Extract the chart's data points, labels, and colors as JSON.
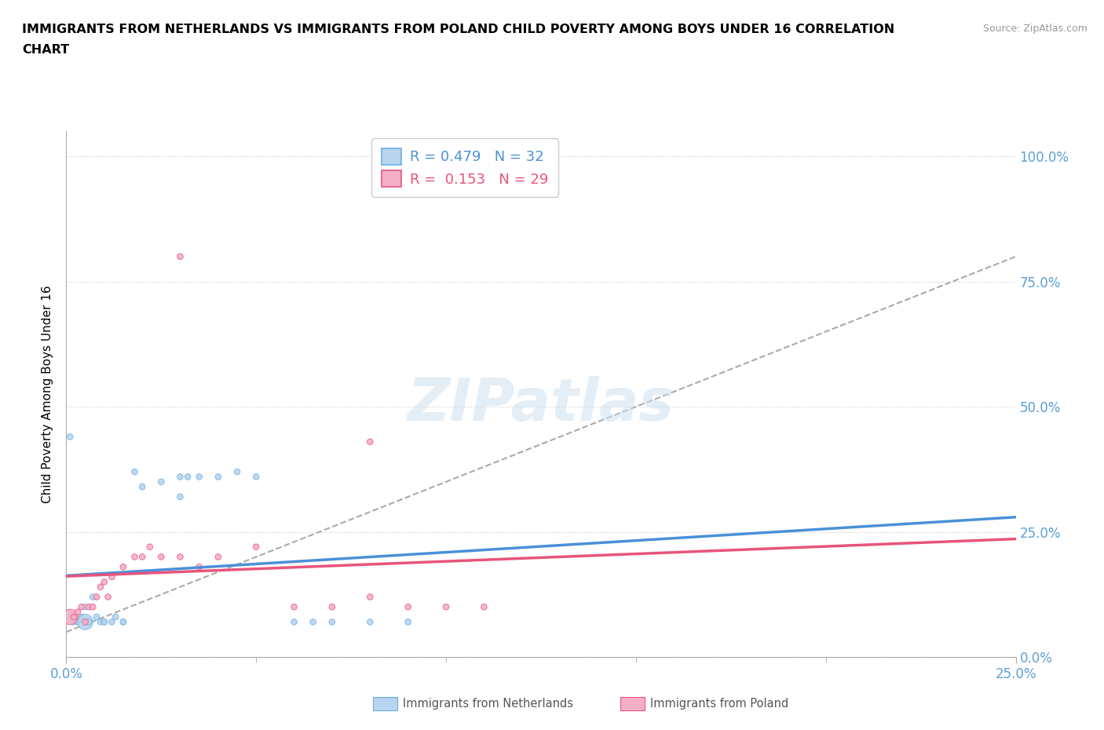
{
  "title_line1": "IMMIGRANTS FROM NETHERLANDS VS IMMIGRANTS FROM POLAND CHILD POVERTY AMONG BOYS UNDER 16 CORRELATION",
  "title_line2": "CHART",
  "ylabel": "Child Poverty Among Boys Under 16",
  "source": "Source: ZipAtlas.com",
  "xlim": [
    0.0,
    0.25
  ],
  "ylim": [
    0.0,
    1.05
  ],
  "ytick_positions": [
    0.0,
    0.25,
    0.5,
    0.75,
    1.0
  ],
  "ytick_labels": [
    "0.0%",
    "25.0%",
    "50.0%",
    "75.0%",
    "100.0%"
  ],
  "xtick_positions": [
    0.0,
    0.25
  ],
  "xtick_labels": [
    "0.0%",
    "25.0%"
  ],
  "netherlands_fill": "#b8d4ee",
  "netherlands_edge": "#6aaee8",
  "poland_fill": "#f5b0c8",
  "poland_edge": "#e8547a",
  "nl_line_color": "#4a90d9",
  "pl_line_color": "#e8547a",
  "gray_dash_color": "#aaaaaa",
  "R_netherlands": 0.479,
  "N_netherlands": 32,
  "R_poland": 0.153,
  "N_poland": 29,
  "watermark": "ZIPatlas",
  "nl_x": [
    0.001,
    0.002,
    0.003,
    0.004,
    0.005,
    0.005,
    0.006,
    0.007,
    0.008,
    0.009,
    0.01,
    0.01,
    0.012,
    0.013,
    0.015,
    0.015,
    0.001,
    0.018,
    0.02,
    0.025,
    0.03,
    0.03,
    0.032,
    0.035,
    0.04,
    0.045,
    0.05,
    0.06,
    0.065,
    0.07,
    0.08,
    0.09
  ],
  "nl_y": [
    0.08,
    0.07,
    0.07,
    0.08,
    0.1,
    0.07,
    0.07,
    0.12,
    0.08,
    0.07,
    0.07,
    0.07,
    0.07,
    0.08,
    0.07,
    0.07,
    0.44,
    0.37,
    0.34,
    0.35,
    0.36,
    0.32,
    0.36,
    0.36,
    0.36,
    0.37,
    0.36,
    0.07,
    0.07,
    0.07,
    0.07,
    0.07
  ],
  "nl_s": [
    30,
    30,
    30,
    30,
    30,
    30,
    30,
    30,
    30,
    30,
    30,
    30,
    30,
    30,
    30,
    30,
    30,
    30,
    30,
    30,
    30,
    30,
    30,
    30,
    30,
    30,
    30,
    30,
    30,
    30,
    30,
    30
  ],
  "pl_x": [
    0.001,
    0.002,
    0.003,
    0.004,
    0.005,
    0.006,
    0.007,
    0.008,
    0.009,
    0.01,
    0.011,
    0.012,
    0.015,
    0.018,
    0.02,
    0.022,
    0.025,
    0.03,
    0.035,
    0.04,
    0.05,
    0.06,
    0.07,
    0.08,
    0.09,
    0.1,
    0.11,
    0.03,
    0.08
  ],
  "pl_y": [
    0.08,
    0.08,
    0.09,
    0.1,
    0.07,
    0.1,
    0.1,
    0.12,
    0.14,
    0.15,
    0.12,
    0.16,
    0.18,
    0.2,
    0.2,
    0.22,
    0.2,
    0.2,
    0.18,
    0.2,
    0.22,
    0.1,
    0.1,
    0.12,
    0.1,
    0.1,
    0.1,
    0.8,
    0.43
  ],
  "pl_s": [
    30,
    30,
    30,
    30,
    30,
    30,
    30,
    30,
    30,
    30,
    30,
    30,
    30,
    30,
    30,
    30,
    30,
    30,
    30,
    30,
    30,
    30,
    30,
    30,
    30,
    30,
    30,
    30,
    30
  ],
  "nl_big_idx": 5,
  "pl_big_idx": 0,
  "nl_big_s": 200,
  "pl_big_s": 200
}
